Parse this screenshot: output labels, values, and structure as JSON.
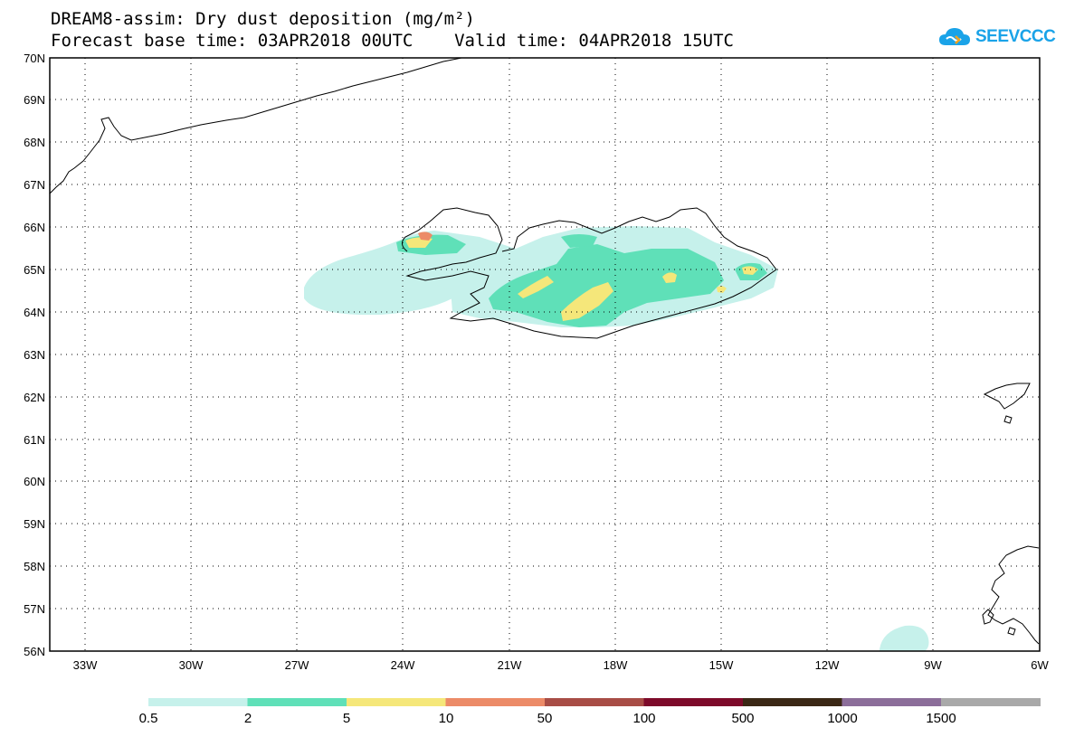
{
  "title": {
    "line1": "DREAM8-assim: Dry dust deposition (mg/m²)",
    "line2": "Forecast base time: 03APR2018 00UTC    Valid time: 04APR2018 15UTC"
  },
  "logo": {
    "text": "SEEVCCC",
    "icon": "cloud-icon",
    "color": "#1aa3e8"
  },
  "map": {
    "lon_range": [
      -34.0,
      -6.0
    ],
    "lat_range": [
      56.0,
      70.0
    ],
    "lat_labels": [
      "56N",
      "57N",
      "58N",
      "59N",
      "60N",
      "61N",
      "62N",
      "63N",
      "64N",
      "65N",
      "66N",
      "67N",
      "68N",
      "69N",
      "70N"
    ],
    "lon_labels": [
      "33W",
      "30W",
      "27W",
      "24W",
      "21W",
      "18W",
      "15W",
      "12W",
      "9W",
      "6W"
    ],
    "gridlines": "dotted"
  },
  "legend": {
    "labels": [
      "0.5",
      "2",
      "5",
      "10",
      "50",
      "100",
      "500",
      "1000",
      "1500"
    ],
    "colors": [
      "#c6f1eb",
      "#5fe0b8",
      "#f5e77a",
      "#ec8b68",
      "#a84d46",
      "#7d0a2a",
      "#3b2815",
      "#8c6e9a",
      "#a9a9a9"
    ]
  }
}
